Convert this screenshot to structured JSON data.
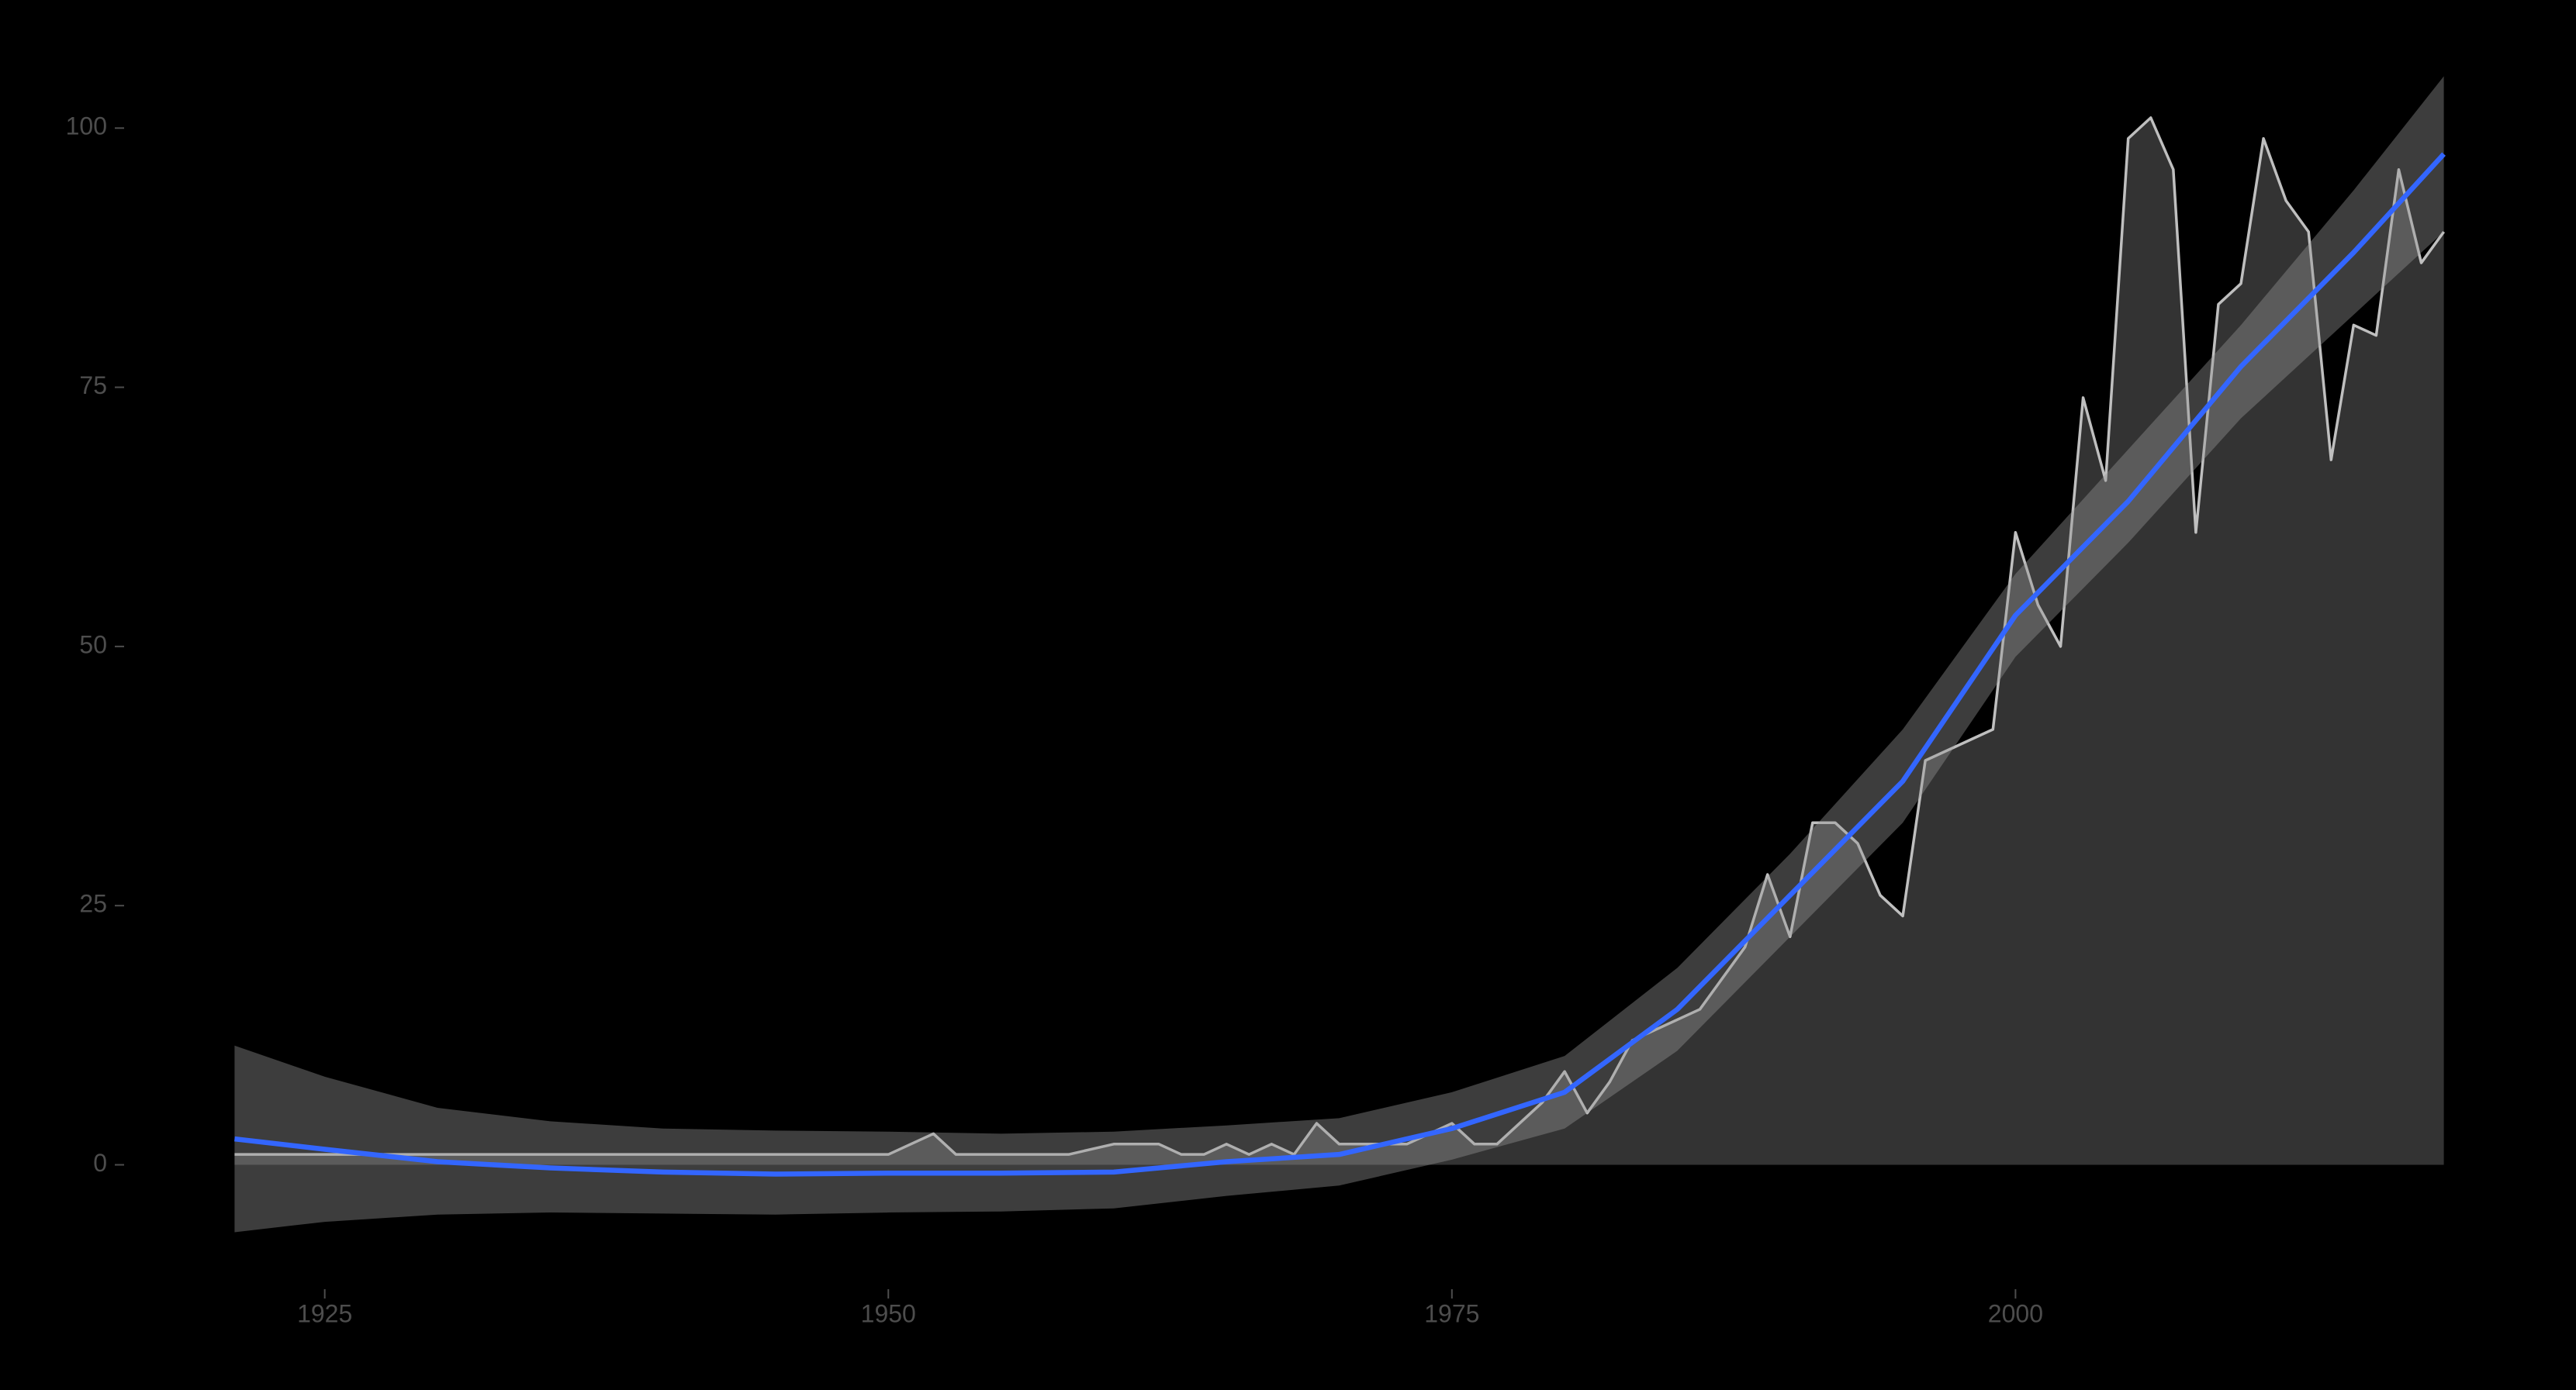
{
  "chart_data": {
    "type": "line",
    "x": [
      1921,
      1922,
      1923,
      1924,
      1925,
      1926,
      1927,
      1928,
      1929,
      1930,
      1931,
      1932,
      1933,
      1934,
      1935,
      1936,
      1937,
      1938,
      1939,
      1940,
      1941,
      1942,
      1943,
      1944,
      1945,
      1946,
      1947,
      1948,
      1949,
      1950,
      1951,
      1952,
      1953,
      1954,
      1955,
      1956,
      1957,
      1958,
      1959,
      1960,
      1961,
      1962,
      1963,
      1964,
      1965,
      1966,
      1967,
      1968,
      1969,
      1970,
      1971,
      1972,
      1973,
      1974,
      1975,
      1976,
      1977,
      1978,
      1979,
      1980,
      1981,
      1982,
      1983,
      1984,
      1985,
      1986,
      1987,
      1988,
      1989,
      1990,
      1991,
      1992,
      1993,
      1994,
      1995,
      1996,
      1997,
      1998,
      1999,
      2000,
      2001,
      2002,
      2003,
      2004,
      2005,
      2006,
      2007,
      2008,
      2009,
      2010,
      2011,
      2012,
      2013,
      2014,
      2015,
      2016,
      2017,
      2018,
      2019
    ],
    "series": [
      {
        "color": "#bfbfbf",
        "area_color": "#333333",
        "values": [
          1,
          1,
          1,
          1,
          1,
          1,
          1,
          1,
          1,
          1,
          1,
          1,
          1,
          1,
          1,
          1,
          1,
          1,
          1,
          1,
          1,
          1,
          1,
          1,
          1,
          1,
          1,
          1,
          1,
          1,
          2,
          3,
          1,
          1,
          1,
          1,
          1,
          1,
          1.5,
          2,
          2,
          2,
          1,
          1,
          2,
          1,
          2,
          1,
          4,
          2,
          2,
          2,
          2,
          3,
          4,
          2,
          2,
          4,
          6,
          9,
          5,
          8,
          12,
          13,
          14,
          15,
          18,
          21,
          28,
          22,
          33,
          33,
          31,
          26,
          24,
          39,
          40,
          41,
          42,
          61,
          54,
          50,
          74,
          66,
          99,
          101,
          96,
          61,
          83,
          85,
          99,
          93,
          90,
          68,
          81,
          80,
          96,
          87,
          90
        ]
      }
    ],
    "smooth": {
      "color": "#3366ff",
      "ribbon_color": "#999999",
      "x": [
        1921,
        1925,
        1930,
        1935,
        1940,
        1945,
        1950,
        1955,
        1960,
        1965,
        1970,
        1975,
        1980,
        1985,
        1990,
        1995,
        2000,
        2005,
        2010,
        2015,
        2019
      ],
      "values": [
        2.5,
        1.5,
        0.3,
        -0.3,
        -0.7,
        -0.9,
        -0.8,
        -0.8,
        -0.7,
        0.3,
        1,
        3.5,
        7,
        15,
        26,
        37,
        53,
        64,
        77,
        88,
        97.5
      ],
      "lower": [
        -6.5,
        -5.5,
        -4.8,
        -4.6,
        -4.7,
        -4.8,
        -4.6,
        -4.5,
        -4.2,
        -3,
        -2,
        0.5,
        3.5,
        11,
        22,
        33,
        49,
        60,
        72,
        82,
        90
      ],
      "upper": [
        11.5,
        8.5,
        5.5,
        4.2,
        3.5,
        3.3,
        3.2,
        3,
        3.2,
        3.8,
        4.5,
        7,
        10.5,
        19,
        30,
        42,
        57,
        69,
        81,
        94,
        105
      ]
    },
    "xlim": [
      1916.1,
      2023.9
    ],
    "ylim": [
      -12,
      106
    ],
    "xticks": [
      1925,
      1950,
      1975,
      2000
    ],
    "yticks": [
      0,
      25,
      50,
      75,
      100
    ]
  }
}
